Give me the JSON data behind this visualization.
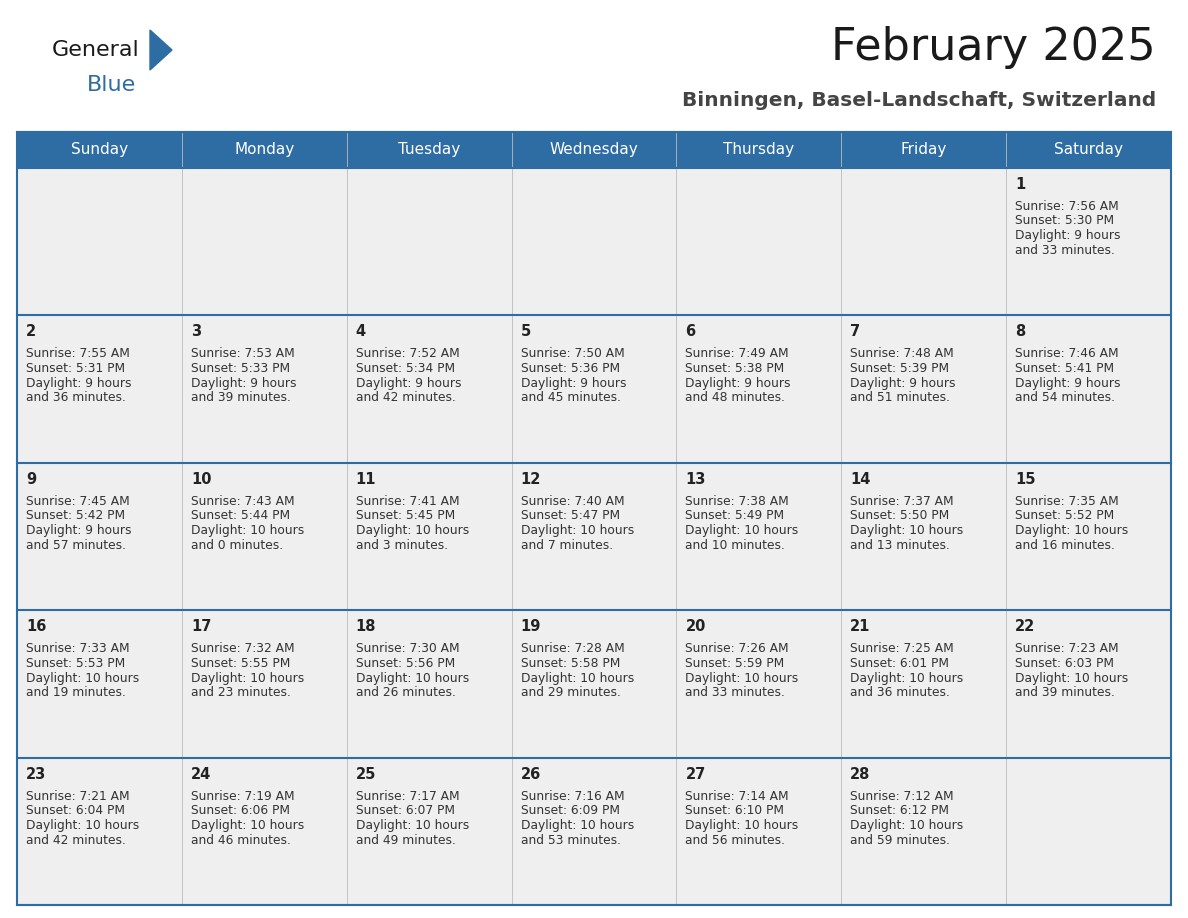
{
  "title": "February 2025",
  "subtitle": "Binningen, Basel-Landschaft, Switzerland",
  "days_of_week": [
    "Sunday",
    "Monday",
    "Tuesday",
    "Wednesday",
    "Thursday",
    "Friday",
    "Saturday"
  ],
  "header_bg": "#2E6DA4",
  "header_text": "#FFFFFF",
  "cell_bg": "#EFEFEF",
  "border_color": "#2E6DA4",
  "day_num_color": "#222222",
  "text_color": "#333333",
  "title_color": "#1a1a1a",
  "logo_general_color": "#1a1a1a",
  "logo_blue_color": "#2E6DA4",
  "logo_triangle_color": "#2E6DA4",
  "calendar_data": [
    [
      null,
      null,
      null,
      null,
      null,
      null,
      {
        "day": 1,
        "sunrise": "7:56 AM",
        "sunset": "5:30 PM",
        "daylight": "9 hours and 33 minutes."
      }
    ],
    [
      {
        "day": 2,
        "sunrise": "7:55 AM",
        "sunset": "5:31 PM",
        "daylight": "9 hours and 36 minutes."
      },
      {
        "day": 3,
        "sunrise": "7:53 AM",
        "sunset": "5:33 PM",
        "daylight": "9 hours and 39 minutes."
      },
      {
        "day": 4,
        "sunrise": "7:52 AM",
        "sunset": "5:34 PM",
        "daylight": "9 hours and 42 minutes."
      },
      {
        "day": 5,
        "sunrise": "7:50 AM",
        "sunset": "5:36 PM",
        "daylight": "9 hours and 45 minutes."
      },
      {
        "day": 6,
        "sunrise": "7:49 AM",
        "sunset": "5:38 PM",
        "daylight": "9 hours and 48 minutes."
      },
      {
        "day": 7,
        "sunrise": "7:48 AM",
        "sunset": "5:39 PM",
        "daylight": "9 hours and 51 minutes."
      },
      {
        "day": 8,
        "sunrise": "7:46 AM",
        "sunset": "5:41 PM",
        "daylight": "9 hours and 54 minutes."
      }
    ],
    [
      {
        "day": 9,
        "sunrise": "7:45 AM",
        "sunset": "5:42 PM",
        "daylight": "9 hours and 57 minutes."
      },
      {
        "day": 10,
        "sunrise": "7:43 AM",
        "sunset": "5:44 PM",
        "daylight": "10 hours and 0 minutes."
      },
      {
        "day": 11,
        "sunrise": "7:41 AM",
        "sunset": "5:45 PM",
        "daylight": "10 hours and 3 minutes."
      },
      {
        "day": 12,
        "sunrise": "7:40 AM",
        "sunset": "5:47 PM",
        "daylight": "10 hours and 7 minutes."
      },
      {
        "day": 13,
        "sunrise": "7:38 AM",
        "sunset": "5:49 PM",
        "daylight": "10 hours and 10 minutes."
      },
      {
        "day": 14,
        "sunrise": "7:37 AM",
        "sunset": "5:50 PM",
        "daylight": "10 hours and 13 minutes."
      },
      {
        "day": 15,
        "sunrise": "7:35 AM",
        "sunset": "5:52 PM",
        "daylight": "10 hours and 16 minutes."
      }
    ],
    [
      {
        "day": 16,
        "sunrise": "7:33 AM",
        "sunset": "5:53 PM",
        "daylight": "10 hours and 19 minutes."
      },
      {
        "day": 17,
        "sunrise": "7:32 AM",
        "sunset": "5:55 PM",
        "daylight": "10 hours and 23 minutes."
      },
      {
        "day": 18,
        "sunrise": "7:30 AM",
        "sunset": "5:56 PM",
        "daylight": "10 hours and 26 minutes."
      },
      {
        "day": 19,
        "sunrise": "7:28 AM",
        "sunset": "5:58 PM",
        "daylight": "10 hours and 29 minutes."
      },
      {
        "day": 20,
        "sunrise": "7:26 AM",
        "sunset": "5:59 PM",
        "daylight": "10 hours and 33 minutes."
      },
      {
        "day": 21,
        "sunrise": "7:25 AM",
        "sunset": "6:01 PM",
        "daylight": "10 hours and 36 minutes."
      },
      {
        "day": 22,
        "sunrise": "7:23 AM",
        "sunset": "6:03 PM",
        "daylight": "10 hours and 39 minutes."
      }
    ],
    [
      {
        "day": 23,
        "sunrise": "7:21 AM",
        "sunset": "6:04 PM",
        "daylight": "10 hours and 42 minutes."
      },
      {
        "day": 24,
        "sunrise": "7:19 AM",
        "sunset": "6:06 PM",
        "daylight": "10 hours and 46 minutes."
      },
      {
        "day": 25,
        "sunrise": "7:17 AM",
        "sunset": "6:07 PM",
        "daylight": "10 hours and 49 minutes."
      },
      {
        "day": 26,
        "sunrise": "7:16 AM",
        "sunset": "6:09 PM",
        "daylight": "10 hours and 53 minutes."
      },
      {
        "day": 27,
        "sunrise": "7:14 AM",
        "sunset": "6:10 PM",
        "daylight": "10 hours and 56 minutes."
      },
      {
        "day": 28,
        "sunrise": "7:12 AM",
        "sunset": "6:12 PM",
        "daylight": "10 hours and 59 minutes."
      },
      null
    ]
  ]
}
